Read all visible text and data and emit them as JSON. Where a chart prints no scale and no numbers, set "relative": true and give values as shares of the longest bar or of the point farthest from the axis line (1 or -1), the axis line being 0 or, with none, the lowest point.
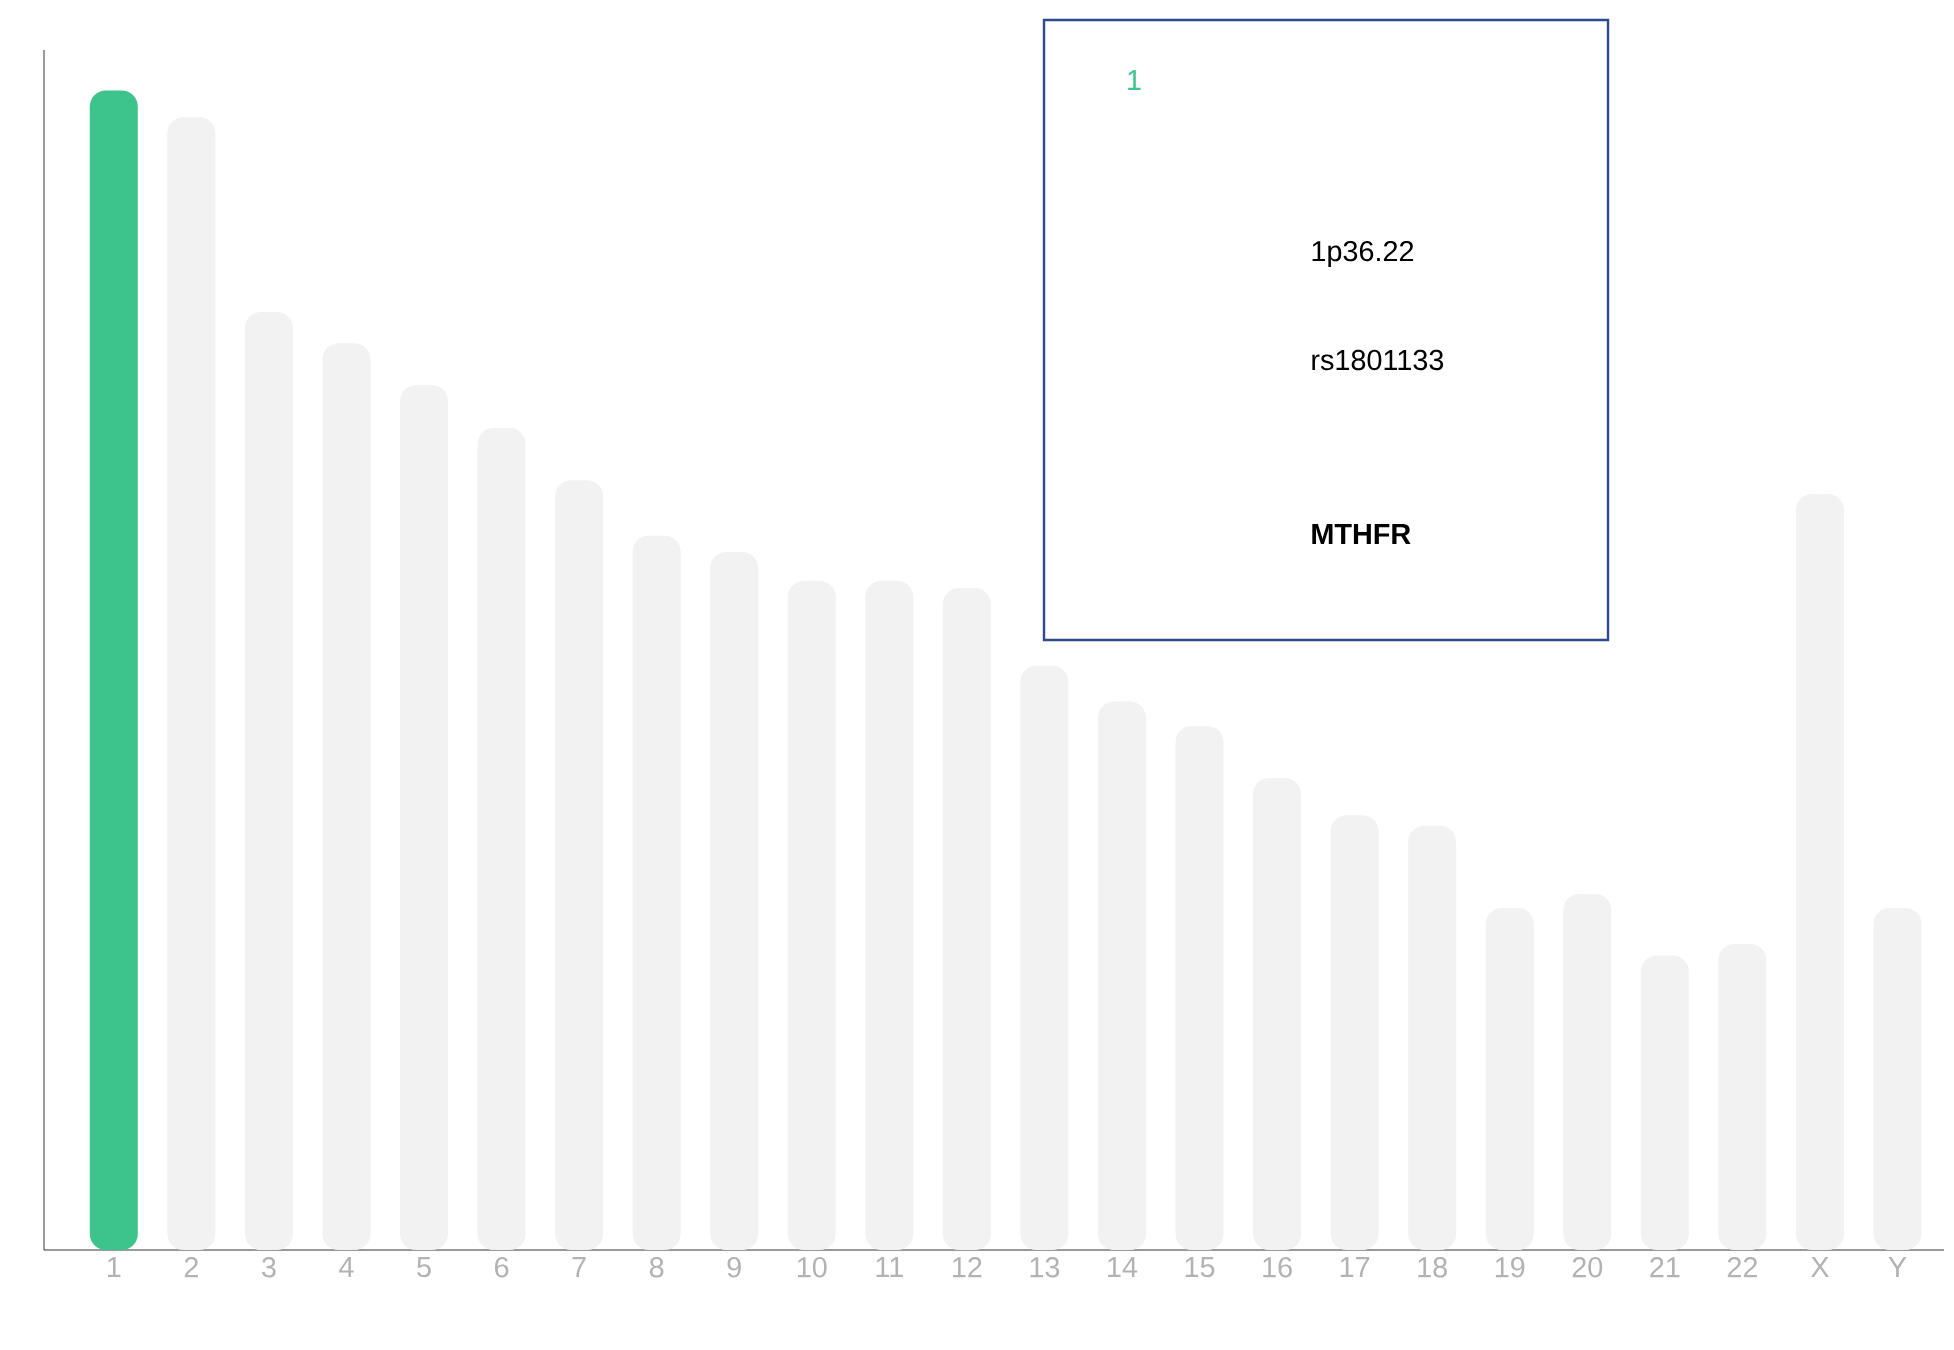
{
  "chart_data": {
    "type": "bar",
    "relative": true,
    "categories": [
      "1",
      "2",
      "3",
      "4",
      "5",
      "6",
      "7",
      "8",
      "9",
      "10",
      "11",
      "12",
      "13",
      "14",
      "15",
      "16",
      "17",
      "18",
      "19",
      "20",
      "21",
      "22",
      "X",
      "Y"
    ],
    "values": [
      1,
      0.977,
      0.809,
      0.782,
      0.746,
      0.709,
      0.664,
      0.616,
      0.602,
      0.577,
      0.577,
      0.571,
      0.504,
      0.473,
      0.452,
      0.407,
      0.375,
      0.366,
      0.295,
      0.307,
      0.254,
      0.264,
      0.652,
      0.295
    ],
    "colors": [
      "#3cc48c",
      "#f2f2f2",
      "#f2f2f2",
      "#f2f2f2",
      "#f2f2f2",
      "#f2f2f2",
      "#f2f2f2",
      "#f2f2f2",
      "#f2f2f2",
      "#f2f2f2",
      "#f2f2f2",
      "#f2f2f2",
      "#f2f2f2",
      "#f2f2f2",
      "#f2f2f2",
      "#f2f2f2",
      "#f2f2f2",
      "#f2f2f2",
      "#f2f2f2",
      "#f2f2f2",
      "#f2f2f2",
      "#f2f2f2",
      "#f2f2f2",
      "#f2f2f2"
    ],
    "annotations": [
      "1",
      "1p36.22",
      "rs1801133",
      "MTHFR"
    ]
  }
}
